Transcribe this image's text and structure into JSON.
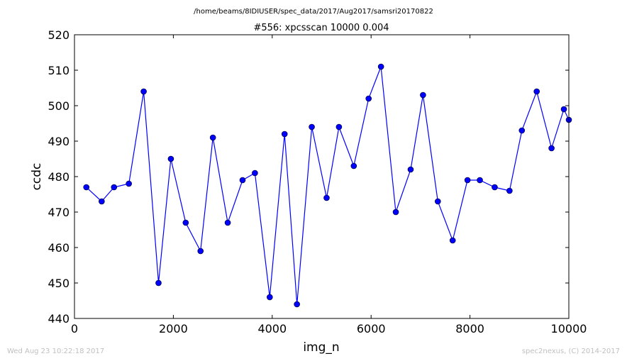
{
  "figure": {
    "suptitle": "/home/beams/8IDIUSER/spec_data/2017/Aug2017/samsri20170822",
    "footer_left": "Wed Aug 23 10:22:18 2017",
    "footer_right": "spec2nexus, (C) 2014-2017"
  },
  "chart_data": {
    "type": "line",
    "title": "#556: xpcsscan 10000 0.004",
    "xlabel": "img_n",
    "ylabel": "ccdc",
    "xlim": [
      0,
      10000
    ],
    "ylim": [
      440,
      520
    ],
    "x_ticks": [
      0,
      2000,
      4000,
      6000,
      8000,
      10000
    ],
    "y_ticks": [
      440,
      450,
      460,
      470,
      480,
      490,
      500,
      510,
      520
    ],
    "grid": false,
    "series_color": "#0000ff",
    "marker": "circle",
    "x": [
      240,
      550,
      800,
      1100,
      1400,
      1700,
      1950,
      2250,
      2550,
      2800,
      3100,
      3400,
      3650,
      3950,
      4250,
      4500,
      4800,
      5100,
      5350,
      5650,
      5950,
      6200,
      6500,
      6800,
      7050,
      7350,
      7650,
      7950,
      8200,
      8500,
      8800,
      9050,
      9350,
      9650,
      9900,
      10000
    ],
    "y": [
      477,
      473,
      477,
      478,
      504,
      450,
      485,
      467,
      459,
      491,
      467,
      479,
      481,
      446,
      492,
      444,
      494,
      474,
      494,
      483,
      502,
      511,
      470,
      482,
      503,
      473,
      462,
      479,
      479,
      477,
      476,
      493,
      504,
      488,
      499,
      496
    ]
  }
}
